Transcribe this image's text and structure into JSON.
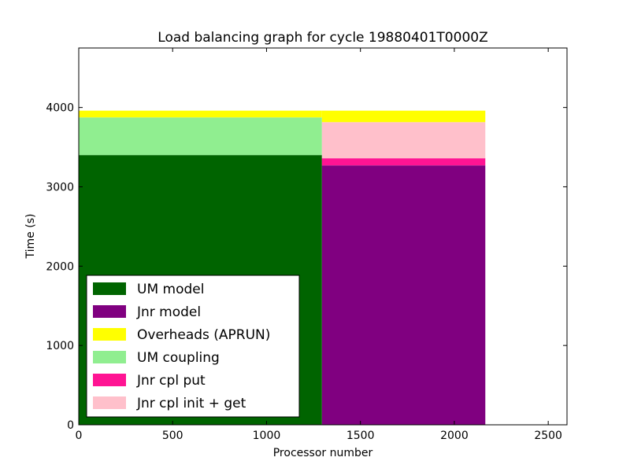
{
  "chart_data": {
    "type": "bar",
    "title": "Load balancing graph for cycle 19880401T0000Z",
    "xlabel": "Processor number",
    "ylabel": "Time (s)",
    "xlim": [
      0,
      2600
    ],
    "ylim": [
      0,
      4750
    ],
    "xticks": [
      0,
      500,
      1000,
      1500,
      2000,
      2500
    ],
    "yticks": [
      0,
      1000,
      2000,
      3000,
      4000
    ],
    "grid": false,
    "legend_position": "bottom-left",
    "series": [
      {
        "name": "UM model",
        "color": "#006400"
      },
      {
        "name": "Jnr model",
        "color": "#800080"
      },
      {
        "name": "Overheads (APRUN)",
        "color": "#ffff00"
      },
      {
        "name": "UM coupling",
        "color": "#90ee90"
      },
      {
        "name": "Jnr cpl put",
        "color": "#ff1493"
      },
      {
        "name": "Jnr cpl init + get",
        "color": "#ffc0cb"
      }
    ],
    "bars": [
      {
        "x_start": 0,
        "x_end": 1295,
        "segments": [
          {
            "series": "UM model",
            "value": 3400
          },
          {
            "series": "UM coupling",
            "value": 475
          },
          {
            "series": "Overheads (APRUN)",
            "value": 85
          }
        ]
      },
      {
        "x_start": 1295,
        "x_end": 2165,
        "segments": [
          {
            "series": "Jnr model",
            "value": 3270
          },
          {
            "series": "Jnr cpl put",
            "value": 90
          },
          {
            "series": "Jnr cpl init + get",
            "value": 455
          },
          {
            "series": "Overheads (APRUN)",
            "value": 145
          }
        ]
      }
    ]
  }
}
